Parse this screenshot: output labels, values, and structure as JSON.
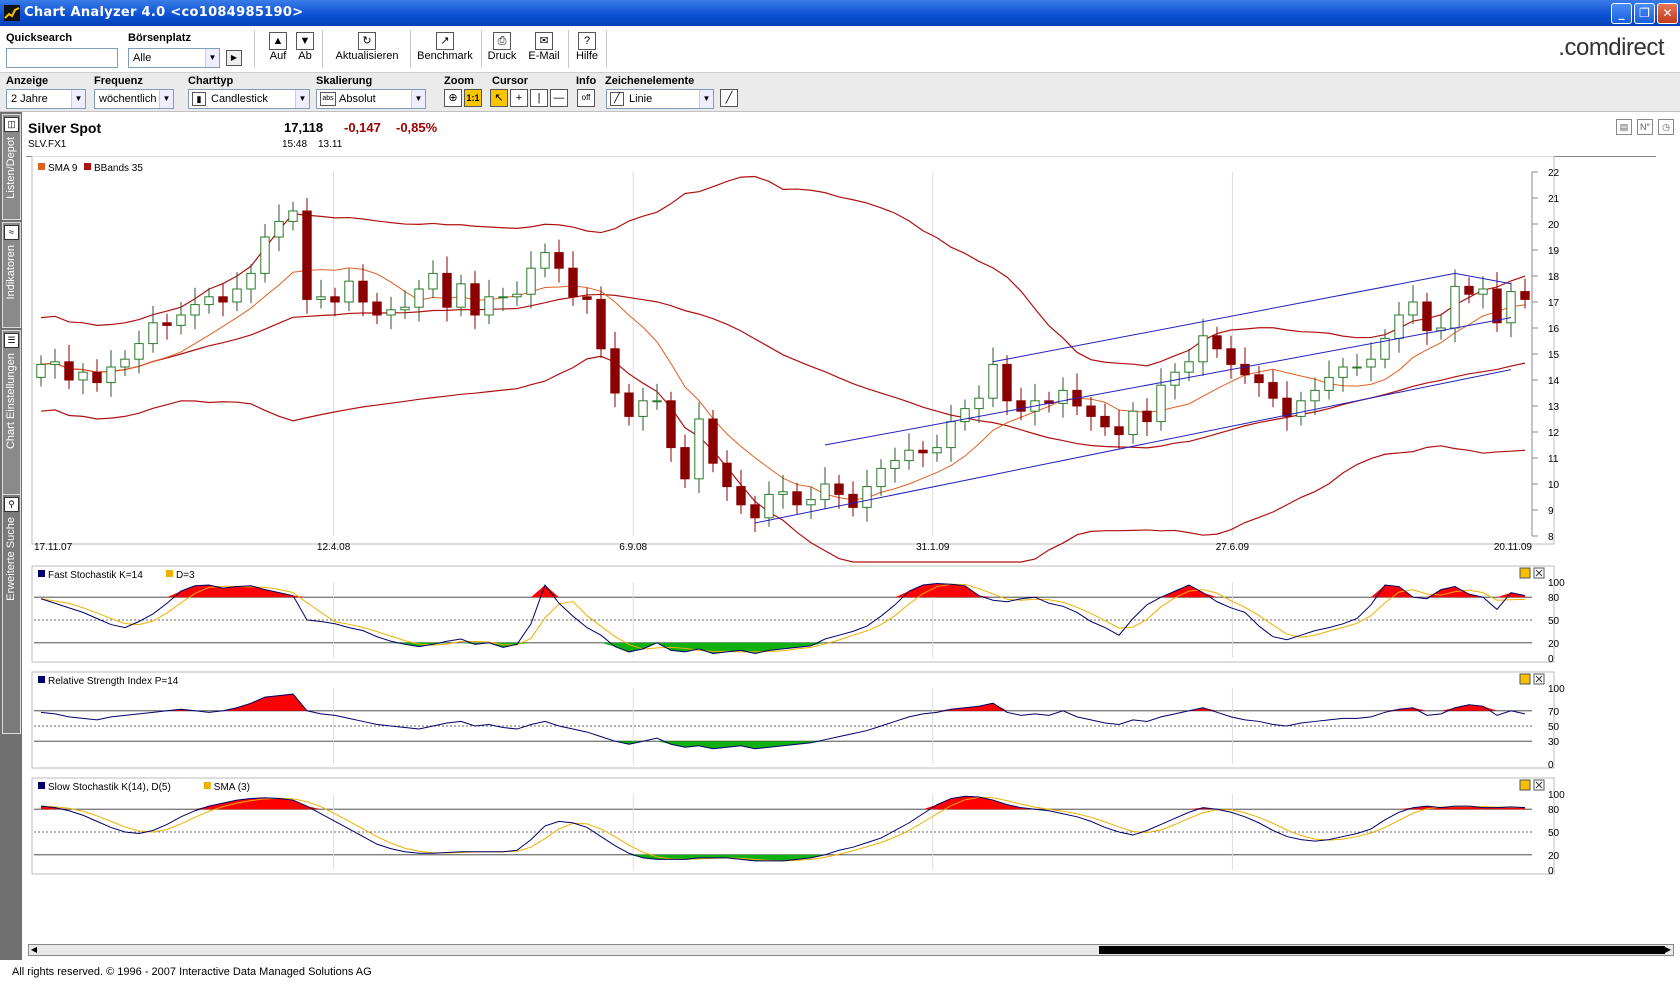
{
  "window": {
    "title": "Chart Analyzer 4.0  <co1084985190>"
  },
  "toolbar": {
    "quicksearch_label": "Quicksearch",
    "quicksearch_value": "",
    "exchange_label": "Börsenplatz",
    "exchange_value": "Alle",
    "buttons": {
      "up": "Auf",
      "down": "Ab",
      "refresh": "Aktualisieren",
      "benchmark": "Benchmark",
      "print": "Druck",
      "email": "E-Mail",
      "help": "Hilfe"
    },
    "brand": ".comdirect"
  },
  "settings": {
    "anzeige_label": "Anzeige",
    "anzeige_value": "2 Jahre",
    "frequenz_label": "Frequenz",
    "frequenz_value": "wöchentlich",
    "charttyp_label": "Charttyp",
    "charttyp_value": "Candlestick",
    "skalierung_label": "Skalierung",
    "skalierung_value": "Absolut",
    "zoom_label": "Zoom",
    "zoom_1to1": "1:1",
    "cursor_label": "Cursor",
    "info_label": "Info",
    "info_value": "off",
    "zeichen_label": "Zeichenelemente",
    "zeichen_value": "Linie"
  },
  "sidebar": {
    "tabs": [
      "Listen/Depot",
      "Indikatoren",
      "Chart Einstellungen",
      "Erweiterte Suche"
    ]
  },
  "instrument": {
    "name": "Silver Spot",
    "symbol": "SLV.FX1",
    "price": "17,118",
    "change": "-0,147",
    "change_pct": "-0,85%",
    "time": "15:48",
    "date": "13.11"
  },
  "colors": {
    "up_candle": "#2a7a2a",
    "down_candle": "#8b0000",
    "sma": "#e06020",
    "bbands": "#b01010",
    "trend": "#2020c0",
    "stoch_k": "#00006a",
    "stoch_d": "#f0b000",
    "over": "#ff0000",
    "under": "#10b010"
  },
  "chart_data": [
    {
      "type": "candlestick",
      "legend": [
        "SMA 9",
        "BBands 35"
      ],
      "x_labels": [
        "17.11.07",
        "12.4.08",
        "6.9.08",
        "31.1.09",
        "27.6.09",
        "20.11.09"
      ],
      "y_ticks": [
        8,
        9,
        10,
        11,
        12,
        13,
        14,
        15,
        16,
        17,
        18,
        19,
        20,
        21,
        22
      ],
      "ylim": [
        8,
        22
      ],
      "closes": [
        14.6,
        14.7,
        14.0,
        14.3,
        13.9,
        14.5,
        14.8,
        15.4,
        16.2,
        16.1,
        16.5,
        16.9,
        17.2,
        17.0,
        17.5,
        18.1,
        19.5,
        20.1,
        20.5,
        17.1,
        17.2,
        17.0,
        17.8,
        17.0,
        16.5,
        16.7,
        16.8,
        17.5,
        18.1,
        16.8,
        17.7,
        16.5,
        17.2,
        17.2,
        17.3,
        18.3,
        18.9,
        18.3,
        17.2,
        17.1,
        15.2,
        13.5,
        12.6,
        13.2,
        13.2,
        11.4,
        10.2,
        12.5,
        10.8,
        9.9,
        9.2,
        8.7,
        9.6,
        9.7,
        9.2,
        9.4,
        10.0,
        9.6,
        9.1,
        9.9,
        10.6,
        10.9,
        11.3,
        11.2,
        11.4,
        12.4,
        12.9,
        13.3,
        14.6,
        13.2,
        12.8,
        13.2,
        13.1,
        13.6,
        13.0,
        12.6,
        12.2,
        11.9,
        12.8,
        12.4,
        13.8,
        14.3,
        14.7,
        15.7,
        15.2,
        14.6,
        14.2,
        13.9,
        13.3,
        12.6,
        13.2,
        13.6,
        14.1,
        14.5,
        14.5,
        14.8,
        15.6,
        16.5,
        17.0,
        15.9,
        16.0,
        17.6,
        17.3,
        17.5,
        16.2,
        17.4,
        17.1
      ]
    },
    {
      "type": "line",
      "title": "Fast Stochastik K=14",
      "series_names": [
        "Fast Stochastik K=14",
        "D=3"
      ],
      "y_ticks": [
        0,
        20,
        50,
        80,
        100
      ],
      "ylim": [
        0,
        100
      ],
      "values": [
        78,
        72,
        66,
        60,
        52,
        44,
        40,
        48,
        58,
        72,
        88,
        95,
        96,
        92,
        94,
        95,
        90,
        86,
        82,
        50,
        48,
        45,
        40,
        36,
        28,
        22,
        18,
        15,
        18,
        22,
        25,
        18,
        20,
        14,
        18,
        45,
        96,
        72,
        55,
        40,
        30,
        15,
        8,
        12,
        20,
        10,
        8,
        12,
        6,
        8,
        10,
        6,
        10,
        12,
        14,
        16,
        25,
        30,
        35,
        42,
        55,
        70,
        88,
        96,
        98,
        97,
        95,
        82,
        76,
        74,
        78,
        80,
        72,
        68,
        60,
        48,
        40,
        30,
        52,
        70,
        80,
        88,
        96,
        86,
        74,
        66,
        60,
        42,
        28,
        24,
        30,
        36,
        40,
        45,
        52,
        70,
        96,
        94,
        80,
        78,
        90,
        94,
        84,
        80,
        64,
        86,
        82
      ]
    },
    {
      "type": "line",
      "title": "Relative Strength Index P=14",
      "y_ticks": [
        0,
        30,
        50,
        70,
        100
      ],
      "ylim": [
        0,
        100
      ],
      "values": [
        68,
        66,
        62,
        60,
        58,
        62,
        64,
        66,
        68,
        70,
        72,
        70,
        68,
        70,
        74,
        80,
        88,
        90,
        92,
        70,
        66,
        64,
        60,
        56,
        52,
        50,
        48,
        46,
        50,
        54,
        56,
        50,
        52,
        48,
        46,
        52,
        56,
        50,
        46,
        42,
        36,
        30,
        26,
        30,
        34,
        26,
        22,
        24,
        20,
        22,
        24,
        20,
        22,
        24,
        26,
        28,
        32,
        36,
        40,
        44,
        50,
        56,
        62,
        66,
        68,
        72,
        74,
        76,
        80,
        68,
        64,
        66,
        64,
        70,
        62,
        58,
        54,
        52,
        58,
        56,
        62,
        66,
        70,
        74,
        68,
        62,
        58,
        56,
        52,
        50,
        54,
        56,
        58,
        60,
        60,
        62,
        68,
        72,
        74,
        64,
        66,
        74,
        78,
        76,
        64,
        70,
        66
      ]
    },
    {
      "type": "line",
      "title": "Slow Stochastik K(14), D(5)",
      "series_names": [
        "Slow Stochastik K(14), D(5)",
        "SMA (3)"
      ],
      "y_ticks": [
        0,
        20,
        50,
        80,
        100
      ],
      "ylim": [
        0,
        100
      ],
      "values": [
        84,
        82,
        78,
        72,
        64,
        56,
        50,
        48,
        52,
        60,
        70,
        78,
        84,
        88,
        92,
        94,
        95,
        94,
        92,
        84,
        74,
        64,
        54,
        44,
        34,
        28,
        24,
        22,
        22,
        23,
        24,
        24,
        24,
        24,
        26,
        40,
        58,
        64,
        62,
        56,
        44,
        32,
        22,
        16,
        14,
        14,
        14,
        16,
        16,
        16,
        14,
        12,
        12,
        12,
        14,
        16,
        20,
        26,
        30,
        36,
        42,
        52,
        62,
        74,
        86,
        94,
        97,
        96,
        92,
        86,
        82,
        80,
        78,
        74,
        70,
        64,
        56,
        50,
        46,
        52,
        60,
        68,
        76,
        82,
        80,
        76,
        70,
        62,
        52,
        44,
        40,
        38,
        40,
        44,
        48,
        54,
        66,
        76,
        82,
        84,
        82,
        84,
        84,
        82,
        82,
        83,
        82
      ]
    }
  ],
  "footer": "All rights reserved. © 1996 - 2007 Interactive Data Managed Solutions AG"
}
